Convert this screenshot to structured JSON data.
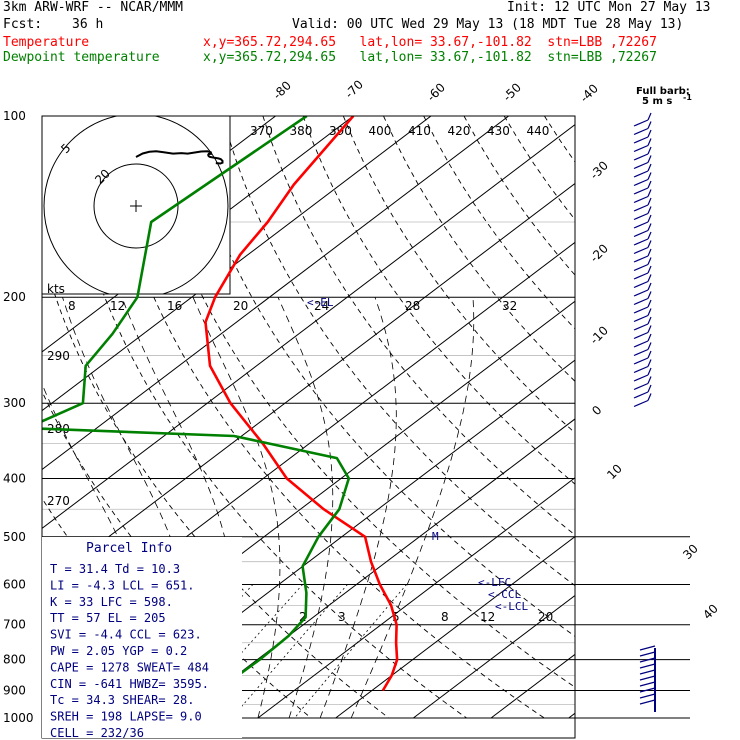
{
  "header": {
    "model": "3km ARW-WRF -- NCAR/MMM",
    "init": "Init: 12 UTC Mon 27 May 13",
    "fcst_label": "Fcst:",
    "fcst_value": "36 h",
    "valid": "Valid: 00 UTC Wed 29 May 13 (18 MDT Tue 28 May 13)",
    "temp_label": "Temperature",
    "temp_info": "x,y=365.72,294.65   lat,lon= 33.67,-101.82  stn=LBB ,72267",
    "dew_label": "Dewpoint temperature",
    "dew_info": "x,y=365.72,294.65   lat,lon= 33.67,-101.82  stn=LBB ,72267",
    "full_barb": "Full barb:",
    "full_barb_units": "5 m s",
    "full_barb_exp": "-1"
  },
  "colors": {
    "temperature": "#ff0000",
    "dewpoint": "#008000",
    "parcel_text": "#000080",
    "hodo_axis": "#000000"
  },
  "parcel_info": {
    "title": "Parcel Info",
    "lines": [
      "T  =    31.4  Td =  10.3",
      "LI =    -4.3  LCL =  651.",
      "K  =      33  LFC =  598.",
      "TT =      57  EL  =   205",
      "SVI =   -4.4  CCL =  623.",
      "PW =    2.05  YGP =   0.2",
      "CAPE =  1278  SWEAT=  484",
      "CIN =   -641  HWBZ= 3595.",
      "Tc =    34.3  SHEAR=   28.",
      "SREH =   198  LAPSE=   9.0",
      "CELL = 232/36"
    ]
  },
  "hodograph": {
    "kts_label": "kts",
    "ring_labels": [
      "5",
      "20"
    ],
    "x_ticks": [
      "8",
      "12",
      "16",
      "20",
      "24",
      "28",
      "32"
    ]
  },
  "markers": {
    "lfc": "LFC",
    "ccl": "CCL",
    "lcl": "LCL"
  },
  "chart_data": {
    "type": "line",
    "title": "",
    "y_label": "",
    "y_ticks": [
      "100",
      "200",
      "300",
      "400",
      "500",
      "600",
      "700",
      "800",
      "900",
      "1000"
    ],
    "isotherm_labels": [
      "-80",
      "-70",
      "-60",
      "-50",
      "-40",
      "-30",
      "-20",
      "-10",
      "0",
      "10",
      "30",
      "40"
    ],
    "theta_labels": [
      "370",
      "380",
      "390",
      "400",
      "410",
      "420",
      "430",
      "440"
    ],
    "theta_side_labels": [
      "290",
      "280",
      "270"
    ],
    "mixing_ratio_labels": [
      "2",
      "3",
      "5",
      "8",
      "12",
      "20"
    ],
    "series": [
      {
        "name": "Temperature",
        "points": [
          [
            100,
            -70
          ],
          [
            130,
            -66
          ],
          [
            150,
            -63
          ],
          [
            170,
            -61
          ],
          [
            200,
            -57
          ],
          [
            220,
            -54
          ],
          [
            260,
            -46
          ],
          [
            300,
            -37
          ],
          [
            350,
            -26
          ],
          [
            400,
            -17
          ],
          [
            450,
            -7
          ],
          [
            500,
            3
          ],
          [
            550,
            8
          ],
          [
            600,
            13
          ],
          [
            650,
            18
          ],
          [
            700,
            22
          ],
          [
            750,
            25
          ],
          [
            800,
            28
          ],
          [
            850,
            30
          ],
          [
            900,
            31.4
          ]
        ]
      },
      {
        "name": "Dewpoint temperature",
        "points": [
          [
            100,
            -76
          ],
          [
            150,
            -78
          ],
          [
            200,
            -67
          ],
          [
            230,
            -64
          ],
          [
            260,
            -62
          ],
          [
            300,
            -56
          ],
          [
            330,
            -59
          ],
          [
            340,
            -31
          ],
          [
            370,
            -14
          ],
          [
            400,
            -9
          ],
          [
            450,
            -5
          ],
          [
            500,
            -3
          ],
          [
            560,
            0
          ],
          [
            620,
            5
          ],
          [
            680,
            9
          ],
          [
            730,
            10
          ],
          [
            800,
            10.3
          ],
          [
            850,
            10.2
          ],
          [
            900,
            10.3
          ]
        ]
      }
    ],
    "hodograph_trace": [
      [
        8.7,
        31.2
      ],
      [
        10.3,
        28.5
      ],
      [
        11.9,
        27.2
      ],
      [
        13.5,
        26.8
      ],
      [
        15.3,
        27.6
      ],
      [
        17.5,
        28.6
      ],
      [
        19.5,
        28.2
      ],
      [
        21.0,
        28.6
      ],
      [
        22.5,
        27.8
      ],
      [
        24.2,
        27.0
      ],
      [
        25.7,
        26.8
      ],
      [
        26.5,
        27.6
      ],
      [
        26.6,
        28.7
      ],
      [
        26.0,
        28.9
      ],
      [
        25.9,
        29.6
      ],
      [
        26.0,
        30.6
      ],
      [
        26.3,
        31.1
      ],
      [
        27.4,
        31.8
      ],
      [
        28.3,
        32.3
      ],
      [
        28.9,
        32.8
      ],
      [
        29.3,
        34.2
      ],
      [
        29.3,
        35.6
      ],
      [
        28.8,
        36.2
      ],
      [
        27.7,
        35.9
      ]
    ]
  }
}
